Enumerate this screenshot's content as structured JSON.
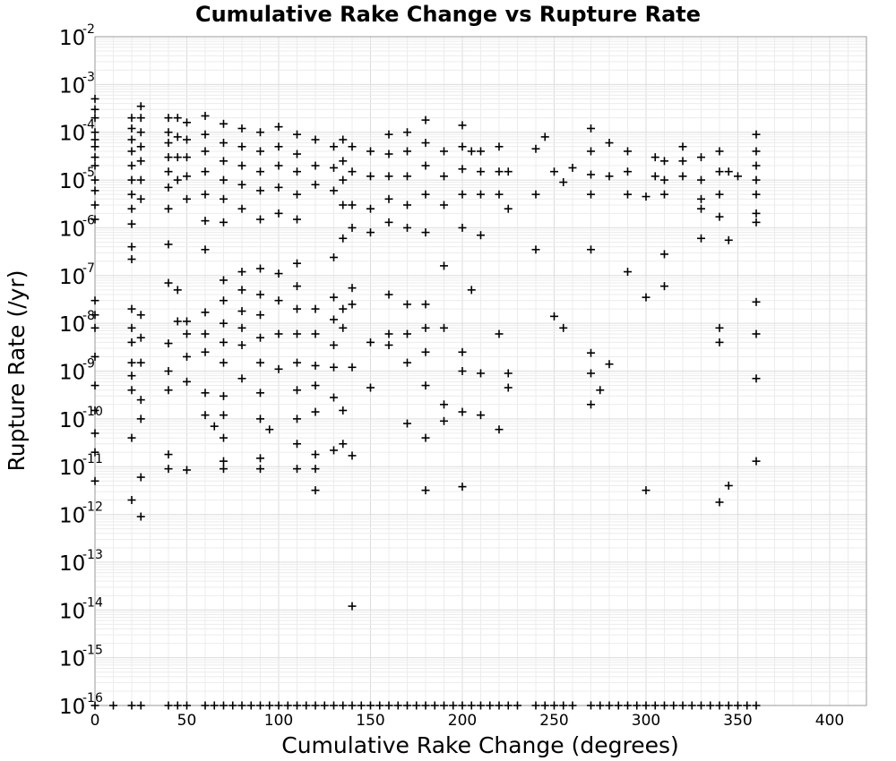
{
  "chart_data": {
    "type": "scatter",
    "title": "Cumulative Rake Change vs Rupture Rate",
    "xlabel": "Cumulative Rake Change (degrees)",
    "ylabel": "Rupture Rate (/yr)",
    "xlim": [
      0,
      420
    ],
    "ylim": [
      1e-16,
      0.01
    ],
    "yscale": "log",
    "grid": true,
    "legend": "none",
    "marker": "+",
    "marker_color": "#000000",
    "xticks": [
      0,
      50,
      100,
      150,
      200,
      250,
      300,
      350,
      400
    ],
    "yticks": [
      {
        "base": "10",
        "exp": "-16"
      },
      {
        "base": "10",
        "exp": "-15"
      },
      {
        "base": "10",
        "exp": "-14"
      },
      {
        "base": "10",
        "exp": "-13"
      },
      {
        "base": "10",
        "exp": "-12"
      },
      {
        "base": "10",
        "exp": "-11"
      },
      {
        "base": "10",
        "exp": "-10"
      },
      {
        "base": "10",
        "exp": "-9"
      },
      {
        "base": "10",
        "exp": "-8"
      },
      {
        "base": "10",
        "exp": "-7"
      },
      {
        "base": "10",
        "exp": "-6"
      },
      {
        "base": "10",
        "exp": "-5"
      },
      {
        "base": "10",
        "exp": "-4"
      },
      {
        "base": "10",
        "exp": "-3"
      },
      {
        "base": "10",
        "exp": "-2"
      }
    ],
    "points": [
      [
        0,
        0.0005
      ],
      [
        0,
        0.0003
      ],
      [
        0,
        0.0002
      ],
      [
        0,
        0.0001
      ],
      [
        0,
        7e-05
      ],
      [
        0,
        5e-05
      ],
      [
        0,
        3e-05
      ],
      [
        0,
        2e-05
      ],
      [
        0,
        1e-05
      ],
      [
        0,
        6e-06
      ],
      [
        0,
        3e-06
      ],
      [
        0,
        1.5e-06
      ],
      [
        0,
        3e-08
      ],
      [
        0,
        1.5e-08
      ],
      [
        0,
        8e-09
      ],
      [
        0,
        2e-09
      ],
      [
        0,
        5e-10
      ],
      [
        0,
        1.5e-10
      ],
      [
        0,
        5e-11
      ],
      [
        0,
        2e-11
      ],
      [
        0,
        5e-12
      ],
      [
        20,
        0.0002
      ],
      [
        20,
        0.00012
      ],
      [
        20,
        7e-05
      ],
      [
        20,
        4e-05
      ],
      [
        20,
        2e-05
      ],
      [
        20,
        1e-05
      ],
      [
        20,
        5e-06
      ],
      [
        20,
        2.5e-06
      ],
      [
        20,
        1.2e-06
      ],
      [
        20,
        4e-07
      ],
      [
        20,
        2.2e-07
      ],
      [
        20,
        2e-08
      ],
      [
        20,
        8e-09
      ],
      [
        20,
        4e-09
      ],
      [
        20,
        1.5e-09
      ],
      [
        20,
        8e-10
      ],
      [
        20,
        4e-10
      ],
      [
        20,
        4e-11
      ],
      [
        20,
        2e-12
      ],
      [
        25,
        0.00035
      ],
      [
        25,
        0.0002
      ],
      [
        25,
        0.0001
      ],
      [
        25,
        5e-05
      ],
      [
        25,
        2.5e-05
      ],
      [
        25,
        1e-05
      ],
      [
        25,
        4e-06
      ],
      [
        25,
        1.5e-08
      ],
      [
        25,
        5e-09
      ],
      [
        25,
        1.5e-09
      ],
      [
        25,
        2.5e-10
      ],
      [
        25,
        1e-10
      ],
      [
        25,
        6e-12
      ],
      [
        25,
        9e-13
      ],
      [
        40,
        0.0002
      ],
      [
        40,
        0.0001
      ],
      [
        40,
        6e-05
      ],
      [
        40,
        3e-05
      ],
      [
        40,
        1.5e-05
      ],
      [
        40,
        7e-06
      ],
      [
        40,
        2.5e-06
      ],
      [
        40,
        4.5e-07
      ],
      [
        40,
        7e-08
      ],
      [
        40,
        3.8e-09
      ],
      [
        40,
        1e-09
      ],
      [
        40,
        4e-10
      ],
      [
        40,
        1.8e-11
      ],
      [
        40,
        9e-12
      ],
      [
        45,
        0.0002
      ],
      [
        45,
        8e-05
      ],
      [
        45,
        3e-05
      ],
      [
        45,
        1e-05
      ],
      [
        45,
        5e-08
      ],
      [
        45,
        1.1e-08
      ],
      [
        50,
        0.00016
      ],
      [
        50,
        7e-05
      ],
      [
        50,
        3e-05
      ],
      [
        50,
        1.2e-05
      ],
      [
        50,
        4e-06
      ],
      [
        50,
        1.1e-08
      ],
      [
        50,
        6e-09
      ],
      [
        50,
        2e-09
      ],
      [
        50,
        6e-10
      ],
      [
        50,
        8.5e-12
      ],
      [
        60,
        0.00022
      ],
      [
        60,
        9e-05
      ],
      [
        60,
        4e-05
      ],
      [
        60,
        1.5e-05
      ],
      [
        60,
        5e-06
      ],
      [
        60,
        1.4e-06
      ],
      [
        60,
        3.5e-07
      ],
      [
        60,
        1.7e-08
      ],
      [
        60,
        6e-09
      ],
      [
        60,
        2.5e-09
      ],
      [
        60,
        3.5e-10
      ],
      [
        60,
        1.2e-10
      ],
      [
        65,
        7e-11
      ],
      [
        70,
        0.00015
      ],
      [
        70,
        6e-05
      ],
      [
        70,
        2.5e-05
      ],
      [
        70,
        1e-05
      ],
      [
        70,
        4e-06
      ],
      [
        70,
        1.3e-06
      ],
      [
        70,
        8e-08
      ],
      [
        70,
        3e-08
      ],
      [
        70,
        1e-08
      ],
      [
        70,
        4e-09
      ],
      [
        70,
        1.5e-09
      ],
      [
        70,
        3e-10
      ],
      [
        70,
        1.2e-10
      ],
      [
        70,
        4e-11
      ],
      [
        70,
        1.3e-11
      ],
      [
        70,
        9e-12
      ],
      [
        80,
        0.00012
      ],
      [
        80,
        5e-05
      ],
      [
        80,
        2e-05
      ],
      [
        80,
        8e-06
      ],
      [
        80,
        2.5e-06
      ],
      [
        80,
        1.2e-07
      ],
      [
        80,
        5e-08
      ],
      [
        80,
        1.8e-08
      ],
      [
        80,
        8e-09
      ],
      [
        80,
        3.5e-09
      ],
      [
        80,
        7e-10
      ],
      [
        90,
        0.0001
      ],
      [
        90,
        4e-05
      ],
      [
        90,
        1.5e-05
      ],
      [
        90,
        6e-06
      ],
      [
        90,
        1.5e-06
      ],
      [
        90,
        1.4e-07
      ],
      [
        90,
        4e-08
      ],
      [
        90,
        1.5e-08
      ],
      [
        90,
        5e-09
      ],
      [
        90,
        1.5e-09
      ],
      [
        90,
        3.5e-10
      ],
      [
        90,
        1e-10
      ],
      [
        90,
        1.5e-11
      ],
      [
        90,
        9e-12
      ],
      [
        95,
        6e-11
      ],
      [
        100,
        0.00013
      ],
      [
        100,
        5e-05
      ],
      [
        100,
        2e-05
      ],
      [
        100,
        7e-06
      ],
      [
        100,
        2e-06
      ],
      [
        100,
        1.1e-07
      ],
      [
        100,
        3e-08
      ],
      [
        100,
        6e-09
      ],
      [
        100,
        1.1e-09
      ],
      [
        110,
        9e-05
      ],
      [
        110,
        3.5e-05
      ],
      [
        110,
        1.5e-05
      ],
      [
        110,
        5e-06
      ],
      [
        110,
        1.5e-06
      ],
      [
        110,
        1.8e-07
      ],
      [
        110,
        6e-08
      ],
      [
        110,
        2e-08
      ],
      [
        110,
        6e-09
      ],
      [
        110,
        1.5e-09
      ],
      [
        110,
        4e-10
      ],
      [
        110,
        1e-10
      ],
      [
        110,
        3e-11
      ],
      [
        110,
        9e-12
      ],
      [
        120,
        7e-05
      ],
      [
        120,
        2e-05
      ],
      [
        120,
        8e-06
      ],
      [
        120,
        2e-08
      ],
      [
        120,
        6e-09
      ],
      [
        120,
        1.3e-09
      ],
      [
        120,
        5e-10
      ],
      [
        120,
        1.4e-10
      ],
      [
        120,
        1.8e-11
      ],
      [
        120,
        9e-12
      ],
      [
        120,
        3.2e-12
      ],
      [
        130,
        5e-05
      ],
      [
        130,
        1.8e-05
      ],
      [
        130,
        6e-06
      ],
      [
        130,
        2.4e-07
      ],
      [
        130,
        3.5e-08
      ],
      [
        130,
        1.2e-08
      ],
      [
        130,
        3.5e-09
      ],
      [
        130,
        1.2e-09
      ],
      [
        130,
        2.8e-10
      ],
      [
        130,
        2.2e-11
      ],
      [
        135,
        7e-05
      ],
      [
        135,
        2.5e-05
      ],
      [
        135,
        1e-05
      ],
      [
        135,
        3e-06
      ],
      [
        135,
        6e-07
      ],
      [
        135,
        2e-08
      ],
      [
        135,
        8e-09
      ],
      [
        135,
        1.5e-10
      ],
      [
        135,
        3e-11
      ],
      [
        140,
        5e-05
      ],
      [
        140,
        1.5e-05
      ],
      [
        140,
        3e-06
      ],
      [
        140,
        1e-06
      ],
      [
        140,
        5.5e-08
      ],
      [
        140,
        2.5e-08
      ],
      [
        140,
        1.2e-09
      ],
      [
        140,
        1.7e-11
      ],
      [
        140,
        1.2e-14
      ],
      [
        150,
        4e-05
      ],
      [
        150,
        1.2e-05
      ],
      [
        150,
        2.5e-06
      ],
      [
        150,
        8e-07
      ],
      [
        150,
        4e-09
      ],
      [
        150,
        4.5e-10
      ],
      [
        160,
        9e-05
      ],
      [
        160,
        3.5e-05
      ],
      [
        160,
        1.2e-05
      ],
      [
        160,
        4e-06
      ],
      [
        160,
        1.3e-06
      ],
      [
        160,
        4e-08
      ],
      [
        160,
        6e-09
      ],
      [
        160,
        3.5e-09
      ],
      [
        170,
        0.0001
      ],
      [
        170,
        4e-05
      ],
      [
        170,
        1.2e-05
      ],
      [
        170,
        3e-06
      ],
      [
        170,
        1e-06
      ],
      [
        170,
        2.5e-08
      ],
      [
        170,
        6e-09
      ],
      [
        170,
        1.5e-09
      ],
      [
        170,
        8e-11
      ],
      [
        180,
        0.00018
      ],
      [
        180,
        6e-05
      ],
      [
        180,
        2e-05
      ],
      [
        180,
        5e-06
      ],
      [
        180,
        8e-07
      ],
      [
        180,
        2.5e-08
      ],
      [
        180,
        8e-09
      ],
      [
        180,
        2.5e-09
      ],
      [
        180,
        5e-10
      ],
      [
        180,
        4e-11
      ],
      [
        180,
        3.2e-12
      ],
      [
        190,
        4e-05
      ],
      [
        190,
        1.2e-05
      ],
      [
        190,
        3e-06
      ],
      [
        190,
        1.6e-07
      ],
      [
        190,
        8e-09
      ],
      [
        190,
        2e-10
      ],
      [
        190,
        9e-11
      ],
      [
        200,
        0.00014
      ],
      [
        200,
        5e-05
      ],
      [
        200,
        1.7e-05
      ],
      [
        200,
        5e-06
      ],
      [
        200,
        1e-06
      ],
      [
        200,
        2.5e-09
      ],
      [
        200,
        1e-09
      ],
      [
        200,
        1.4e-10
      ],
      [
        200,
        3.8e-12
      ],
      [
        205,
        4e-05
      ],
      [
        205,
        5e-08
      ],
      [
        210,
        4e-05
      ],
      [
        210,
        1.5e-05
      ],
      [
        210,
        5e-06
      ],
      [
        210,
        7e-07
      ],
      [
        210,
        9e-10
      ],
      [
        210,
        1.2e-10
      ],
      [
        220,
        5e-05
      ],
      [
        220,
        1.5e-05
      ],
      [
        220,
        5e-06
      ],
      [
        220,
        6e-09
      ],
      [
        220,
        6e-11
      ],
      [
        225,
        1.5e-05
      ],
      [
        225,
        2.5e-06
      ],
      [
        225,
        9e-10
      ],
      [
        225,
        4.5e-10
      ],
      [
        240,
        4.5e-05
      ],
      [
        240,
        5e-06
      ],
      [
        240,
        3.5e-07
      ],
      [
        245,
        8e-05
      ],
      [
        250,
        1.5e-05
      ],
      [
        250,
        1.4e-08
      ],
      [
        255,
        9e-06
      ],
      [
        255,
        8e-09
      ],
      [
        260,
        1.8e-05
      ],
      [
        270,
        0.00012
      ],
      [
        270,
        4e-05
      ],
      [
        270,
        1.3e-05
      ],
      [
        270,
        5e-06
      ],
      [
        270,
        3.5e-07
      ],
      [
        270,
        2.4e-09
      ],
      [
        270,
        9e-10
      ],
      [
        270,
        2e-10
      ],
      [
        275,
        4e-10
      ],
      [
        280,
        6e-05
      ],
      [
        280,
        1.2e-05
      ],
      [
        280,
        1.4e-09
      ],
      [
        290,
        4e-05
      ],
      [
        290,
        1.5e-05
      ],
      [
        290,
        5e-06
      ],
      [
        290,
        1.2e-07
      ],
      [
        300,
        4.5e-06
      ],
      [
        300,
        3.5e-08
      ],
      [
        300,
        3.2e-12
      ],
      [
        305,
        3e-05
      ],
      [
        305,
        1.2e-05
      ],
      [
        310,
        2.5e-05
      ],
      [
        310,
        1e-05
      ],
      [
        310,
        5e-06
      ],
      [
        310,
        2.8e-07
      ],
      [
        310,
        6e-08
      ],
      [
        320,
        5e-05
      ],
      [
        320,
        2.5e-05
      ],
      [
        320,
        1.2e-05
      ],
      [
        330,
        3e-05
      ],
      [
        330,
        1e-05
      ],
      [
        330,
        4e-06
      ],
      [
        330,
        2.5e-06
      ],
      [
        330,
        6e-07
      ],
      [
        340,
        4e-05
      ],
      [
        340,
        1.5e-05
      ],
      [
        340,
        5e-06
      ],
      [
        340,
        1.7e-06
      ],
      [
        340,
        8e-09
      ],
      [
        340,
        4e-09
      ],
      [
        340,
        1.8e-12
      ],
      [
        345,
        1.5e-05
      ],
      [
        345,
        5.5e-07
      ],
      [
        345,
        4e-12
      ],
      [
        350,
        1.2e-05
      ],
      [
        360,
        9e-05
      ],
      [
        360,
        4e-05
      ],
      [
        360,
        2e-05
      ],
      [
        360,
        1e-05
      ],
      [
        360,
        5e-06
      ],
      [
        360,
        2e-06
      ],
      [
        360,
        1.3e-06
      ],
      [
        360,
        2.8e-08
      ],
      [
        360,
        6e-09
      ],
      [
        360,
        7e-10
      ],
      [
        360,
        1.3e-11
      ],
      [
        0,
        1e-16
      ],
      [
        10,
        1e-16
      ],
      [
        20,
        1e-16
      ],
      [
        25,
        1e-16
      ],
      [
        40,
        1e-16
      ],
      [
        45,
        1e-16
      ],
      [
        50,
        1e-16
      ],
      [
        60,
        1e-16
      ],
      [
        65,
        1e-16
      ],
      [
        70,
        1e-16
      ],
      [
        75,
        1e-16
      ],
      [
        80,
        1e-16
      ],
      [
        85,
        1e-16
      ],
      [
        90,
        1e-16
      ],
      [
        95,
        1e-16
      ],
      [
        100,
        1e-16
      ],
      [
        105,
        1e-16
      ],
      [
        110,
        1e-16
      ],
      [
        115,
        1e-16
      ],
      [
        120,
        1e-16
      ],
      [
        125,
        1e-16
      ],
      [
        130,
        1e-16
      ],
      [
        135,
        1e-16
      ],
      [
        140,
        1e-16
      ],
      [
        145,
        1e-16
      ],
      [
        150,
        1e-16
      ],
      [
        155,
        1e-16
      ],
      [
        160,
        1e-16
      ],
      [
        165,
        1e-16
      ],
      [
        170,
        1e-16
      ],
      [
        175,
        1e-16
      ],
      [
        180,
        1e-16
      ],
      [
        185,
        1e-16
      ],
      [
        190,
        1e-16
      ],
      [
        195,
        1e-16
      ],
      [
        200,
        1e-16
      ],
      [
        205,
        1e-16
      ],
      [
        210,
        1e-16
      ],
      [
        215,
        1e-16
      ],
      [
        220,
        1e-16
      ],
      [
        225,
        1e-16
      ],
      [
        230,
        1e-16
      ],
      [
        240,
        1e-16
      ],
      [
        245,
        1e-16
      ],
      [
        250,
        1e-16
      ],
      [
        255,
        1e-16
      ],
      [
        260,
        1e-16
      ],
      [
        270,
        1e-16
      ],
      [
        275,
        1e-16
      ],
      [
        280,
        1e-16
      ],
      [
        285,
        1e-16
      ],
      [
        290,
        1e-16
      ],
      [
        295,
        1e-16
      ],
      [
        300,
        1e-16
      ],
      [
        305,
        1e-16
      ],
      [
        310,
        1e-16
      ],
      [
        315,
        1e-16
      ],
      [
        320,
        1e-16
      ],
      [
        325,
        1e-16
      ],
      [
        330,
        1e-16
      ],
      [
        335,
        1e-16
      ],
      [
        340,
        1e-16
      ],
      [
        345,
        1e-16
      ],
      [
        350,
        1e-16
      ],
      [
        355,
        1e-16
      ],
      [
        360,
        1e-16
      ]
    ]
  }
}
